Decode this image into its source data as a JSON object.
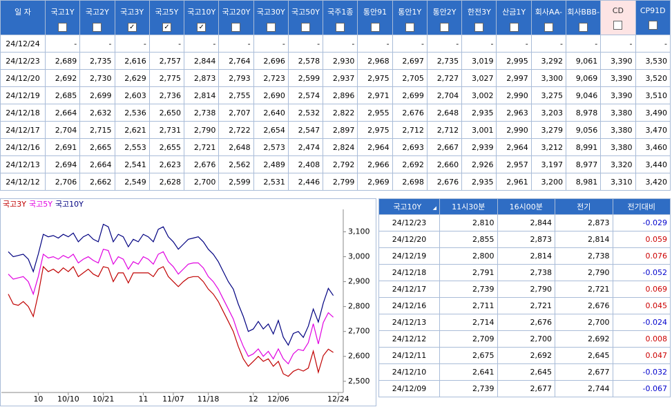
{
  "rates_table": {
    "columns": [
      "일 자",
      "국고1Y",
      "국고2Y",
      "국고3Y",
      "국고5Y",
      "국고10Y",
      "국고20Y",
      "국고30Y",
      "국고50Y",
      "국주1종",
      "통안91",
      "통안1Y",
      "통안2Y",
      "한전3Y",
      "산금1Y",
      "회사AA-",
      "회사BBB-",
      "CD",
      "CP91D"
    ],
    "checked": [
      false,
      false,
      true,
      true,
      true,
      false,
      false,
      false,
      false,
      false,
      false,
      false,
      false,
      false,
      false,
      false,
      false,
      false
    ],
    "rows": [
      [
        "24/12/24",
        "-",
        "-",
        "-",
        "-",
        "-",
        "-",
        "-",
        "-",
        "-",
        "-",
        "-",
        "-",
        "-",
        "-",
        "-",
        "-",
        "-",
        "-"
      ],
      [
        "24/12/23",
        "2,689",
        "2,735",
        "2,616",
        "2,757",
        "2,844",
        "2,764",
        "2,696",
        "2,578",
        "2,930",
        "2,968",
        "2,697",
        "2,735",
        "3,019",
        "2,995",
        "3,292",
        "9,061",
        "3,390",
        "3,530"
      ],
      [
        "24/12/20",
        "2,692",
        "2,730",
        "2,629",
        "2,775",
        "2,873",
        "2,793",
        "2,723",
        "2,599",
        "2,937",
        "2,975",
        "2,705",
        "2,727",
        "3,027",
        "2,997",
        "3,300",
        "9,069",
        "3,390",
        "3,520"
      ],
      [
        "24/12/19",
        "2,685",
        "2,699",
        "2,603",
        "2,736",
        "2,814",
        "2,755",
        "2,690",
        "2,574",
        "2,896",
        "2,971",
        "2,699",
        "2,704",
        "3,002",
        "2,990",
        "3,275",
        "9,046",
        "3,390",
        "3,510"
      ],
      [
        "24/12/18",
        "2,664",
        "2,632",
        "2,536",
        "2,650",
        "2,738",
        "2,707",
        "2,640",
        "2,532",
        "2,822",
        "2,955",
        "2,676",
        "2,648",
        "2,935",
        "2,963",
        "3,203",
        "8,978",
        "3,380",
        "3,490"
      ],
      [
        "24/12/17",
        "2,704",
        "2,715",
        "2,621",
        "2,731",
        "2,790",
        "2,722",
        "2,654",
        "2,547",
        "2,897",
        "2,975",
        "2,712",
        "2,712",
        "3,001",
        "2,990",
        "3,279",
        "9,056",
        "3,380",
        "3,470"
      ],
      [
        "24/12/16",
        "2,691",
        "2,665",
        "2,553",
        "2,655",
        "2,721",
        "2,648",
        "2,573",
        "2,474",
        "2,824",
        "2,964",
        "2,693",
        "2,667",
        "2,939",
        "2,964",
        "3,212",
        "8,991",
        "3,380",
        "3,460"
      ],
      [
        "24/12/13",
        "2,694",
        "2,664",
        "2,541",
        "2,623",
        "2,676",
        "2,562",
        "2,489",
        "2,408",
        "2,792",
        "2,966",
        "2,692",
        "2,660",
        "2,926",
        "2,957",
        "3,197",
        "8,977",
        "3,320",
        "3,440"
      ],
      [
        "24/12/12",
        "2,706",
        "2,662",
        "2,549",
        "2,628",
        "2,700",
        "2,599",
        "2,531",
        "2,446",
        "2,799",
        "2,969",
        "2,698",
        "2,676",
        "2,935",
        "2,961",
        "3,200",
        "8,981",
        "3,310",
        "3,420"
      ]
    ]
  },
  "chart_data": {
    "type": "line",
    "categories": [
      null,
      null,
      null,
      null,
      null,
      null,
      "10",
      null,
      null,
      null,
      null,
      null,
      "10/10",
      null,
      null,
      null,
      null,
      null,
      null,
      "10/21",
      null,
      null,
      null,
      null,
      null,
      null,
      null,
      "11",
      null,
      null,
      null,
      null,
      null,
      "11/07",
      null,
      null,
      null,
      null,
      null,
      null,
      "11/18",
      null,
      null,
      null,
      null,
      null,
      null,
      null,
      null,
      "12",
      null,
      null,
      null,
      null,
      "12/06",
      null,
      null,
      null,
      null,
      null,
      null,
      null,
      null,
      null,
      null,
      null,
      "12/24"
    ],
    "series": [
      {
        "name": "국고3Y",
        "color": "#c00000",
        "values": [
          2850,
          2810,
          2805,
          2820,
          2800,
          2760,
          2850,
          2960,
          2940,
          2950,
          2935,
          2955,
          2940,
          2960,
          2920,
          2935,
          2950,
          2930,
          2920,
          2960,
          2955,
          2900,
          2935,
          2935,
          2895,
          2935,
          2935,
          2935,
          2935,
          2920,
          2950,
          2960,
          2920,
          2900,
          2880,
          2900,
          2915,
          2920,
          2920,
          2900,
          2870,
          2850,
          2820,
          2780,
          2740,
          2700,
          2640,
          2590,
          2560,
          2580,
          2600,
          2580,
          2590,
          2560,
          2580,
          2530,
          2520,
          2540,
          2549,
          2541,
          2553,
          2621,
          2536,
          2603,
          2629,
          2616,
          null
        ]
      },
      {
        "name": "국고5Y",
        "color": "#e000e0",
        "values": [
          2930,
          2910,
          2915,
          2920,
          2900,
          2850,
          2920,
          3010,
          2995,
          3000,
          2990,
          3005,
          2995,
          3010,
          2975,
          2990,
          3000,
          2985,
          2975,
          3030,
          3025,
          2970,
          3000,
          2990,
          2950,
          2980,
          2970,
          3000,
          2990,
          2970,
          3010,
          3020,
          2980,
          2960,
          2930,
          2950,
          2970,
          2975,
          2975,
          2955,
          2920,
          2900,
          2870,
          2830,
          2790,
          2750,
          2690,
          2640,
          2600,
          2610,
          2630,
          2600,
          2620,
          2590,
          2630,
          2590,
          2570,
          2610,
          2628,
          2623,
          2655,
          2731,
          2650,
          2736,
          2775,
          2757,
          null
        ]
      },
      {
        "name": "국고10Y",
        "color": "#000080",
        "values": [
          3020,
          3000,
          3005,
          3010,
          2990,
          2940,
          3010,
          3090,
          3080,
          3085,
          3075,
          3090,
          3080,
          3095,
          3060,
          3080,
          3090,
          3070,
          3060,
          3130,
          3120,
          3060,
          3090,
          3080,
          3040,
          3070,
          3060,
          3090,
          3080,
          3060,
          3110,
          3120,
          3080,
          3060,
          3030,
          3050,
          3070,
          3075,
          3080,
          3060,
          3030,
          3010,
          2980,
          2940,
          2900,
          2870,
          2810,
          2760,
          2700,
          2710,
          2740,
          2710,
          2730,
          2690,
          2744,
          2677,
          2645,
          2692,
          2700,
          2676,
          2721,
          2790,
          2738,
          2814,
          2873,
          2844,
          null
        ]
      }
    ],
    "ylim": [
      2455,
      3190
    ],
    "yticks": [
      {
        "value": 2500,
        "label": "2,500"
      },
      {
        "value": 2600,
        "label": "2,600"
      },
      {
        "value": 2700,
        "label": "2,700"
      },
      {
        "value": 2800,
        "label": "2,800"
      },
      {
        "value": 2900,
        "label": "2,900"
      },
      {
        "value": 3000,
        "label": "3,000"
      },
      {
        "value": 3100,
        "label": "3,100"
      }
    ]
  },
  "daily_table": {
    "columns": [
      "국고10Y",
      "11시30분",
      "16시00분",
      "전기",
      "전기대비"
    ],
    "rows": [
      [
        "24/12/23",
        "2,810",
        "2,844",
        "2,873",
        "-0.029"
      ],
      [
        "24/12/20",
        "2,855",
        "2,873",
        "2,814",
        "0.059"
      ],
      [
        "24/12/19",
        "2,800",
        "2,814",
        "2,738",
        "0.076"
      ],
      [
        "24/12/18",
        "2,791",
        "2,738",
        "2,790",
        "-0.052"
      ],
      [
        "24/12/17",
        "2,739",
        "2,790",
        "2,721",
        "0.069"
      ],
      [
        "24/12/16",
        "2,711",
        "2,721",
        "2,676",
        "0.045"
      ],
      [
        "24/12/13",
        "2,714",
        "2,676",
        "2,700",
        "-0.024"
      ],
      [
        "24/12/12",
        "2,709",
        "2,700",
        "2,692",
        "0.008"
      ],
      [
        "24/12/11",
        "2,675",
        "2,692",
        "2,645",
        "0.047"
      ],
      [
        "24/12/10",
        "2,641",
        "2,645",
        "2,677",
        "-0.032"
      ],
      [
        "24/12/09",
        "2,739",
        "2,677",
        "2,744",
        "-0.067"
      ]
    ]
  }
}
